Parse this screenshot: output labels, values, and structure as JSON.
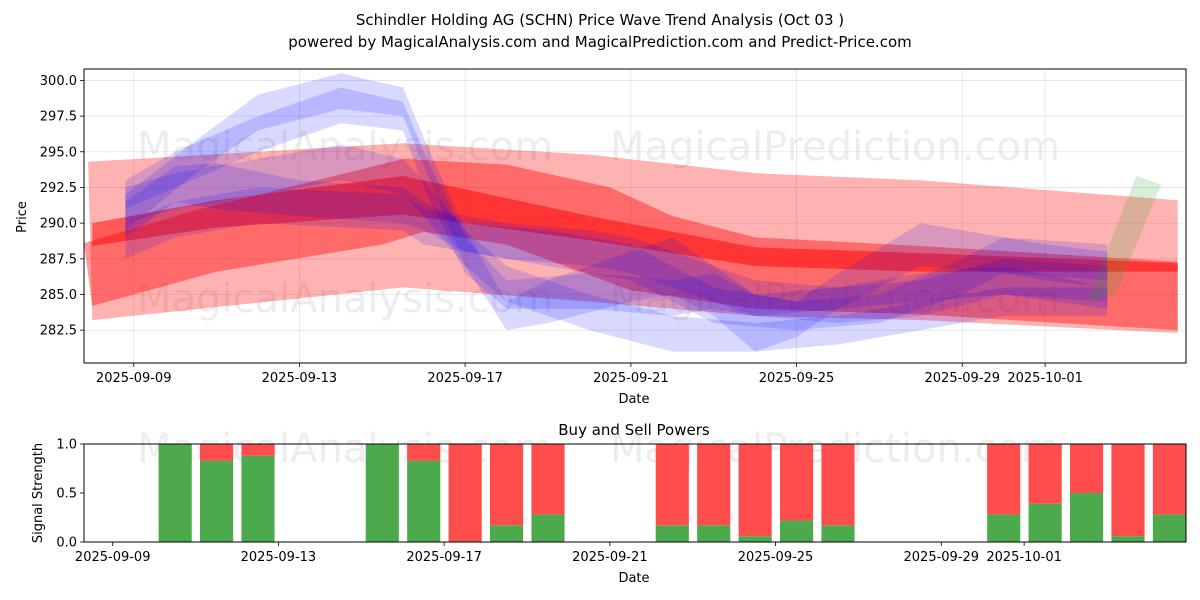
{
  "title_line1": "Schindler Holding AG (SCHN) Price Wave Trend Analysis (Oct 03 )",
  "title_line2": "powered by MagicalAnalysis.com and MagicalPrediction.com and Predict-Price.com",
  "watermarks": [
    "MagicalAnalysis.com",
    "MagicalPrediction.com"
  ],
  "chart_data": [
    {
      "type": "area",
      "name": "price-wave",
      "xlabel": "Date",
      "ylabel": "Price",
      "x_ticks": [
        "2025-09-09",
        "2025-09-13",
        "2025-09-17",
        "2025-09-21",
        "2025-09-25",
        "2025-09-29",
        "2025-10-01"
      ],
      "x_tick_days": [
        1,
        5,
        9,
        13,
        17,
        21,
        23
      ],
      "y_ticks": [
        282.5,
        285.0,
        287.5,
        290.0,
        292.5,
        295.0,
        297.5,
        300.0
      ],
      "xlim": [
        -0.2,
        26.4
      ],
      "ylim": [
        280.2,
        300.8
      ],
      "grid": true,
      "red_bands": [
        {
          "alpha": 0.3,
          "upper": [
            [
              -0.1,
              294.3
            ],
            [
              7.5,
              295.6
            ],
            [
              12,
              294.8
            ],
            [
              16,
              293.5
            ],
            [
              20,
              293
            ],
            [
              26.2,
              291.6
            ]
          ],
          "lower": [
            [
              0,
              283.2
            ],
            [
              7.5,
              285.5
            ],
            [
              12,
              284.5
            ],
            [
              16,
              283.5
            ],
            [
              20,
              283.2
            ],
            [
              26.2,
              282.3
            ]
          ]
        },
        {
          "alpha": 0.4,
          "upper": [
            [
              -0.2,
              288.6
            ],
            [
              2.5,
              290.9
            ],
            [
              7.5,
              294.5
            ],
            [
              10,
              294.1
            ],
            [
              12.5,
              292.5
            ],
            [
              14,
              290.5
            ],
            [
              16,
              289
            ],
            [
              20,
              288.4
            ],
            [
              26.2,
              287.3
            ]
          ],
          "lower": [
            [
              0,
              284.2
            ],
            [
              3,
              286.6
            ],
            [
              7,
              288.5
            ],
            [
              8,
              289.4
            ],
            [
              10,
              288.5
            ],
            [
              13,
              285.3
            ],
            [
              16,
              284
            ],
            [
              20,
              283.6
            ],
            [
              26.2,
              282.5
            ]
          ]
        },
        {
          "alpha": 0.5,
          "upper": [
            [
              0,
              290
            ],
            [
              3,
              291.6
            ],
            [
              7.5,
              293.3
            ],
            [
              12,
              290.5
            ],
            [
              16,
              288.3
            ],
            [
              20,
              287.9
            ],
            [
              26.2,
              287.2
            ]
          ],
          "lower": [
            [
              0,
              288.4
            ],
            [
              3,
              289.7
            ],
            [
              7.5,
              290.6
            ],
            [
              12,
              288.8
            ],
            [
              16,
              287
            ],
            [
              20,
              286.6
            ],
            [
              26.2,
              286.6
            ]
          ]
        }
      ],
      "blue_bands": [
        {
          "alpha": 0.15,
          "upper": [
            [
              0.8,
              292
            ],
            [
              2.5,
              295.8
            ],
            [
              4,
              299
            ],
            [
              6,
              300.5
            ],
            [
              7.5,
              299.5
            ],
            [
              8,
              296
            ],
            [
              9,
              289.5
            ],
            [
              10,
              284.5
            ],
            [
              11,
              286
            ],
            [
              13,
              288
            ],
            [
              14,
              289
            ],
            [
              15,
              287
            ],
            [
              16,
              285
            ],
            [
              17,
              284.5
            ],
            [
              18,
              286.5
            ],
            [
              20,
              290
            ],
            [
              22,
              289
            ],
            [
              24.5,
              288.5
            ]
          ],
          "lower": [
            [
              0.8,
              289.5
            ],
            [
              2.5,
              293.5
            ],
            [
              4,
              296.5
            ],
            [
              6,
              298
            ],
            [
              7.5,
              297.5
            ],
            [
              8,
              294
            ],
            [
              9,
              287
            ],
            [
              10,
              282.5
            ],
            [
              11,
              283
            ],
            [
              13,
              284.5
            ],
            [
              14,
              285
            ],
            [
              15,
              283.5
            ],
            [
              16,
              281
            ],
            [
              17,
              282
            ],
            [
              18,
              284
            ],
            [
              20,
              287
            ],
            [
              22,
              286.5
            ],
            [
              24.5,
              286
            ]
          ]
        },
        {
          "alpha": 0.15,
          "upper": [
            [
              0.8,
              293
            ],
            [
              2,
              295
            ],
            [
              4,
              297.5
            ],
            [
              6,
              299.5
            ],
            [
              7.5,
              298.5
            ],
            [
              8,
              295
            ],
            [
              9,
              289
            ],
            [
              10,
              286
            ],
            [
              12,
              286.5
            ],
            [
              14,
              286
            ],
            [
              15,
              286.5
            ],
            [
              16,
              285
            ],
            [
              18,
              285.5
            ],
            [
              20,
              286.5
            ],
            [
              22,
              287
            ],
            [
              24.5,
              285.5
            ]
          ],
          "lower": [
            [
              0.8,
              291
            ],
            [
              2,
              292.5
            ],
            [
              4,
              295
            ],
            [
              6,
              297
            ],
            [
              7.5,
              296.5
            ],
            [
              8,
              292.5
            ],
            [
              9,
              286.5
            ],
            [
              10,
              284
            ],
            [
              12,
              284
            ],
            [
              14,
              283.5
            ],
            [
              15,
              284
            ],
            [
              16,
              283.5
            ],
            [
              18,
              284
            ],
            [
              20,
              284.5
            ],
            [
              22,
              285
            ],
            [
              24.5,
              284
            ]
          ]
        },
        {
          "alpha": 0.15,
          "upper": [
            [
              0.8,
              291.5
            ],
            [
              2,
              294
            ],
            [
              3,
              294.2
            ],
            [
              5,
              293
            ],
            [
              7.5,
              292.5
            ],
            [
              8,
              291.5
            ],
            [
              9,
              290
            ],
            [
              11,
              289.5
            ],
            [
              13,
              288.5
            ],
            [
              15,
              285.5
            ],
            [
              17,
              284.5
            ],
            [
              19,
              285
            ],
            [
              21,
              287.5
            ],
            [
              22,
              289
            ],
            [
              23,
              288.5
            ],
            [
              24.5,
              288
            ]
          ],
          "lower": [
            [
              0.8,
              289
            ],
            [
              2,
              291.5
            ],
            [
              3,
              291
            ],
            [
              5,
              290.5
            ],
            [
              7.5,
              290
            ],
            [
              8,
              289.5
            ],
            [
              9,
              288
            ],
            [
              11,
              287
            ],
            [
              13,
              286
            ],
            [
              15,
              283
            ],
            [
              17,
              282.5
            ],
            [
              19,
              283
            ],
            [
              21,
              285
            ],
            [
              22,
              286.5
            ],
            [
              23,
              286
            ],
            [
              24.5,
              285.5
            ]
          ]
        },
        {
          "alpha": 0.15,
          "upper": [
            [
              0.8,
              290
            ],
            [
              2,
              291.5
            ],
            [
              4,
              292.5
            ],
            [
              7.5,
              292
            ],
            [
              8,
              291
            ],
            [
              10,
              290
            ],
            [
              12,
              289.5
            ],
            [
              13,
              289
            ],
            [
              14,
              288
            ],
            [
              15,
              287
            ],
            [
              16,
              286
            ],
            [
              18,
              285.5
            ],
            [
              20,
              286
            ],
            [
              22,
              287.5
            ],
            [
              24.5,
              287
            ]
          ],
          "lower": [
            [
              0.8,
              287.5
            ],
            [
              2,
              289
            ],
            [
              4,
              290
            ],
            [
              7.5,
              289.5
            ],
            [
              8,
              288.5
            ],
            [
              10,
              287.5
            ],
            [
              12,
              287
            ],
            [
              13,
              286.5
            ],
            [
              14,
              285.5
            ],
            [
              15,
              284.5
            ],
            [
              16,
              283.5
            ],
            [
              18,
              283
            ],
            [
              20,
              283.5
            ],
            [
              22,
              285
            ],
            [
              24.5,
              284.5
            ]
          ]
        },
        {
          "alpha": 0.15,
          "upper": [
            [
              0.8,
              292.5
            ],
            [
              2,
              293.5
            ],
            [
              4,
              294.5
            ],
            [
              6,
              295.5
            ],
            [
              7.5,
              294.5
            ],
            [
              8,
              293
            ],
            [
              9,
              289.5
            ],
            [
              10,
              287
            ],
            [
              12,
              285
            ],
            [
              14,
              283.5
            ],
            [
              16,
              283
            ],
            [
              18,
              283.5
            ],
            [
              20,
              284.5
            ],
            [
              22,
              285.5
            ],
            [
              24.5,
              285.5
            ]
          ],
          "lower": [
            [
              0.8,
              290
            ],
            [
              2,
              291
            ],
            [
              4,
              292
            ],
            [
              6,
              293
            ],
            [
              7.5,
              292
            ],
            [
              8,
              290.5
            ],
            [
              9,
              287
            ],
            [
              10,
              284.5
            ],
            [
              12,
              282.5
            ],
            [
              14,
              281
            ],
            [
              16,
              281
            ],
            [
              18,
              281.5
            ],
            [
              20,
              282.5
            ],
            [
              22,
              283.5
            ],
            [
              24.5,
              283.5
            ]
          ]
        }
      ],
      "green_bands": [
        {
          "alpha": 0.18,
          "upper": [
            [
              24,
              284.5
            ],
            [
              25.2,
              293.3
            ],
            [
              25.8,
              292.7
            ],
            [
              24.7,
              285
            ]
          ],
          "lower": [
            [
              24,
              284.5
            ],
            [
              24.7,
              285
            ],
            [
              25.8,
              292.7
            ],
            [
              25.2,
              293.3
            ]
          ]
        }
      ]
    },
    {
      "type": "bar",
      "name": "buy-sell-powers",
      "title": "Buy and Sell Powers",
      "xlabel": "Date",
      "ylabel": "Signal Strength",
      "x_ticks": [
        "2025-09-09",
        "2025-09-13",
        "2025-09-17",
        "2025-09-21",
        "2025-09-25",
        "2025-09-29",
        "2025-10-01"
      ],
      "x_tick_days": [
        1,
        5,
        9,
        13,
        17,
        21,
        23
      ],
      "y_ticks": [
        "0.0",
        "0.5",
        "1.0"
      ],
      "ylim": [
        0,
        1
      ],
      "xlim": [
        -0.2,
        26.4
      ],
      "days": [
        2,
        3,
        4,
        7,
        8,
        9,
        10,
        11,
        14,
        15,
        16,
        17,
        18,
        22,
        23,
        24,
        25,
        26
      ],
      "buy": [
        1.0,
        0.83,
        0.88,
        1.0,
        0.83,
        0.0,
        0.17,
        0.28,
        0.17,
        0.17,
        0.06,
        0.22,
        0.17,
        0.28,
        0.39,
        0.5,
        0.06,
        0.28
      ],
      "sell": [
        0.0,
        0.17,
        0.12,
        0.0,
        0.17,
        1.0,
        0.83,
        0.72,
        0.83,
        0.83,
        0.94,
        0.78,
        0.83,
        0.72,
        0.61,
        0.5,
        0.94,
        0.72
      ],
      "colors": {
        "buy": "#4caa4c",
        "sell": "#ff4c4c"
      }
    }
  ],
  "colors": {
    "red": "#ff0000",
    "blue": "#0000ff",
    "green": "#2ca02c",
    "grid": "#b0b0b0"
  }
}
